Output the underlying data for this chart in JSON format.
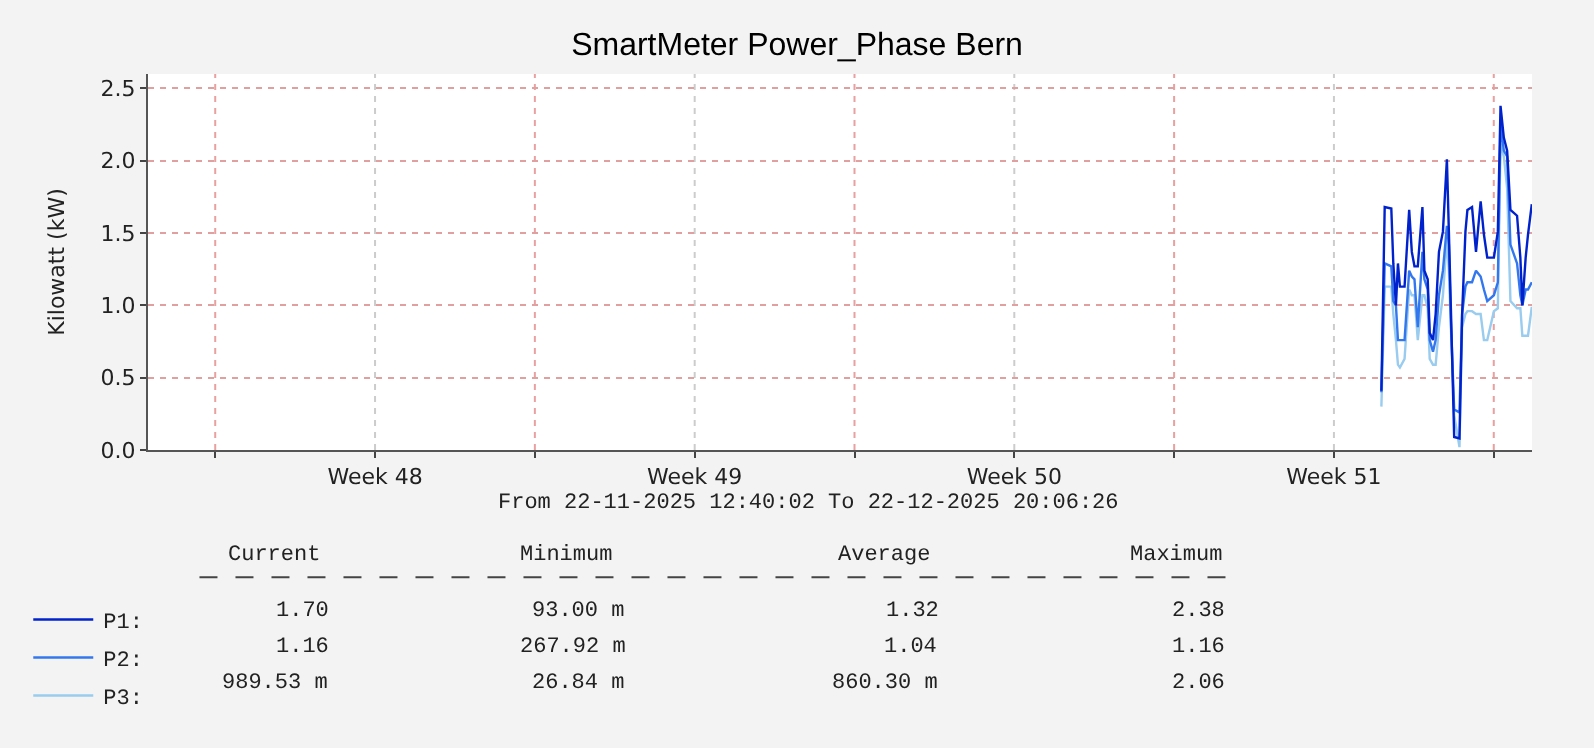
{
  "chart_data": {
    "type": "line",
    "title": "SmartMeter Power_Phase Bern",
    "ylabel": "Kilowatt (kW)",
    "x": [
      "2025-12-19T12:56",
      "2025-12-19T14:41",
      "2025-12-19T18:09",
      "2025-12-19T19:12",
      "2025-12-19T20:35",
      "2025-12-19T21:38",
      "2025-12-19T22:41",
      "2025-12-20T01:07",
      "2025-12-20T03:33",
      "2025-12-20T04:56",
      "2025-12-20T06:20",
      "2025-12-20T08:04",
      "2025-12-20T10:30",
      "2025-12-20T11:33",
      "2025-12-20T13:17",
      "2025-12-20T14:20",
      "2025-12-20T16:04",
      "2025-12-20T17:27",
      "2025-12-20T19:12",
      "2025-12-20T21:17",
      "2025-12-20T23:22",
      "2025-12-21T00:25",
      "2025-12-21T01:28",
      "2025-12-21T03:12",
      "2025-12-21T05:59",
      "2025-12-21T07:22",
      "2025-12-21T09:07",
      "2025-12-21T10:09",
      "2025-12-21T12:35",
      "2025-12-21T14:40",
      "2025-12-21T17:06",
      "2025-12-21T18:50",
      "2025-12-21T20:35",
      "2025-12-22T00:04",
      "2025-12-22T02:09",
      "2025-12-22T03:33",
      "2025-12-22T05:17",
      "2025-12-22T07:02",
      "2025-12-22T08:46",
      "2025-12-22T12:15",
      "2025-12-22T13:59",
      "2025-12-22T15:02",
      "2025-12-22T16:46",
      "2025-12-22T18:00",
      "2025-12-22T20:00"
    ],
    "series": [
      {
        "name": "P1:",
        "color": "#0022cc",
        "values": [
          0.41,
          1.68,
          1.67,
          1.29,
          1.0,
          1.29,
          1.13,
          1.13,
          1.66,
          1.37,
          1.27,
          1.27,
          1.68,
          1.24,
          1.18,
          0.81,
          0.76,
          0.94,
          1.37,
          1.51,
          2.01,
          1.51,
          0.98,
          0.09,
          0.08,
          0.94,
          1.51,
          1.66,
          1.68,
          1.37,
          1.72,
          1.49,
          1.33,
          1.33,
          1.51,
          2.38,
          2.16,
          2.07,
          1.66,
          1.62,
          1.33,
          1.0,
          1.33,
          1.49,
          1.7
        ]
      },
      {
        "name": "P2:",
        "color": "#3377ee",
        "values": [
          0.4,
          1.29,
          1.27,
          1.03,
          1.0,
          0.76,
          0.76,
          0.76,
          1.24,
          1.2,
          1.18,
          0.85,
          1.37,
          1.18,
          1.11,
          0.76,
          0.68,
          0.76,
          1.07,
          1.24,
          1.55,
          1.42,
          0.89,
          0.28,
          0.26,
          0.94,
          1.13,
          1.16,
          1.16,
          1.24,
          1.2,
          1.11,
          1.03,
          1.07,
          1.16,
          2.25,
          2.07,
          2.03,
          1.42,
          1.29,
          1.07,
          1.0,
          1.11,
          1.11,
          1.16
        ]
      },
      {
        "name": "P3:",
        "color": "#99ccee",
        "values": [
          0.3,
          1.13,
          1.13,
          0.94,
          0.76,
          0.59,
          0.57,
          0.63,
          1.11,
          1.07,
          1.07,
          0.76,
          1.07,
          1.07,
          0.98,
          0.63,
          0.59,
          0.59,
          0.85,
          1.07,
          1.46,
          1.24,
          0.85,
          0.24,
          0.02,
          0.85,
          0.94,
          0.96,
          0.96,
          0.94,
          0.94,
          0.76,
          0.76,
          0.96,
          0.98,
          2.12,
          2.03,
          1.81,
          1.03,
          0.98,
          0.98,
          0.79,
          0.79,
          0.79,
          0.99
        ]
      }
    ],
    "xlim": [
      "2025-11-22T12:40",
      "2025-12-22T20:06"
    ],
    "xticks": [
      {
        "value": "2025-11-24",
        "label": null
      },
      {
        "value": "2025-11-27T12:00",
        "label": "Week 48"
      },
      {
        "value": "2025-12-01",
        "label": null
      },
      {
        "value": "2025-12-04T12:00",
        "label": "Week 49"
      },
      {
        "value": "2025-12-08",
        "label": null
      },
      {
        "value": "2025-12-11T12:00",
        "label": "Week 50"
      },
      {
        "value": "2025-12-15",
        "label": null
      },
      {
        "value": "2025-12-18T12:00",
        "label": "Week 51"
      },
      {
        "value": "2025-12-22",
        "label": null
      }
    ],
    "ylim": [
      0,
      2.6
    ],
    "yticks": [
      {
        "value": 0,
        "label": "0.0"
      },
      0.5,
      {
        "value": 1,
        "label": "1.0"
      },
      1.5,
      {
        "value": 2,
        "label": "2.0"
      },
      2.5
    ],
    "grid": true,
    "legend": "bottom left",
    "line_style": "solid",
    "marker": "none",
    "annotations": [
      "From 22-11-2025 12:40:02 To 22-12-2025 20:06:26",
      "Current",
      "Minimum",
      "Average",
      "Maximum",
      "1.70",
      "93.00 m",
      "1.32",
      "2.38",
      "1.16",
      "267.92 m",
      "1.04",
      "1.16",
      "989.53 m",
      "26.84 m",
      "860.30 m",
      "2.06"
    ]
  }
}
